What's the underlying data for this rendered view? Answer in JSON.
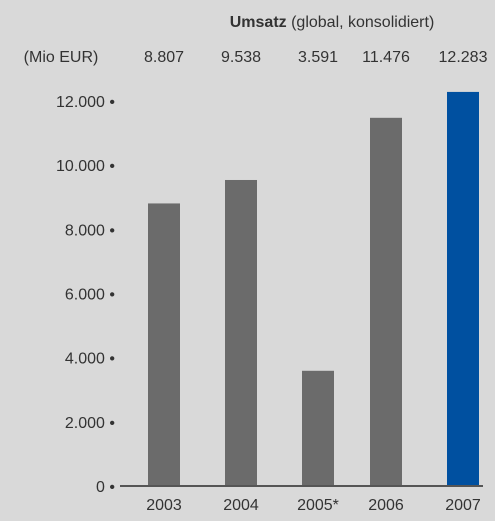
{
  "chart_data": {
    "type": "bar",
    "title_bold": "Umsatz",
    "title_rest": " (global, konsolidiert)",
    "value_unit_label": "(Mio EUR)",
    "categories": [
      "2003",
      "2004",
      "2005*",
      "2006",
      "2007"
    ],
    "values": [
      8807,
      9538,
      3591,
      11476,
      12283
    ],
    "value_labels": [
      "8.807",
      "9.538",
      "3.591",
      "11.476",
      "12.283"
    ],
    "yticks": [
      0,
      2000,
      4000,
      6000,
      8000,
      10000,
      12000
    ],
    "ytick_labels": [
      "0 •",
      "2.000 •",
      "4.000 •",
      "6.000 •",
      "8.000 •",
      "10.000 •",
      "12.000 •"
    ],
    "ylim": [
      0,
      12000
    ],
    "grid": false,
    "legend": "none",
    "colors": {
      "background": "#d9d9d9",
      "bar": "#6b6b6b",
      "highlight_bar": "#0050a0",
      "text": "#333333",
      "axis": "#555555"
    },
    "highlight_category": "2007"
  }
}
